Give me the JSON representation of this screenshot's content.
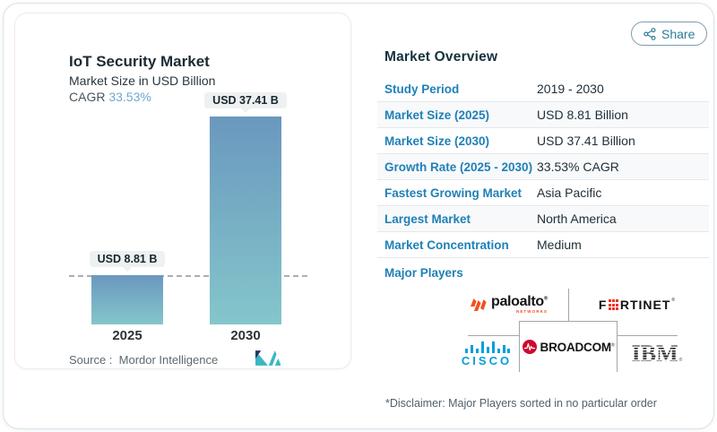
{
  "share": {
    "label": "Share"
  },
  "chart": {
    "title": "IoT Security Market",
    "subtitle": "Market Size in USD Billion",
    "cagr_label": "CAGR",
    "cagr_value": "33.53%",
    "source": "Source :  Mordor Intelligence",
    "bars": [
      {
        "year": "2025",
        "label": "USD 8.81 B"
      },
      {
        "year": "2030",
        "label": "USD 37.41 B"
      }
    ]
  },
  "chart_data": {
    "type": "bar",
    "categories": [
      "2025",
      "2030"
    ],
    "values": [
      8.81,
      37.41
    ],
    "title": "IoT Security Market",
    "subtitle": "Market Size in USD Billion",
    "cagr": "33.53%",
    "bar_labels": [
      "USD 8.81 B",
      "USD 37.41 B"
    ],
    "reference_line_value": 8.81,
    "ylim": [
      0,
      40
    ],
    "grid": false,
    "bar_gradient": [
      "#6a98be",
      "#84c6cb"
    ]
  },
  "overview": {
    "heading": "Market Overview",
    "rows": [
      {
        "label": "Study Period",
        "value": "2019 - 2030"
      },
      {
        "label": "Market Size (2025)",
        "value": "USD 8.81 Billion"
      },
      {
        "label": "Market Size (2030)",
        "value": "USD 37.41 Billion"
      },
      {
        "label": "Growth Rate (2025 - 2030)",
        "value": "33.53% CAGR"
      },
      {
        "label": "Fastest Growing Market",
        "value": "Asia Pacific"
      },
      {
        "label": "Largest Market",
        "value": "North America"
      },
      {
        "label": "Market Concentration",
        "value": "Medium"
      }
    ],
    "players_label": "Major Players",
    "players": {
      "paloalto": {
        "text": "paloalto",
        "sub": "networks"
      },
      "fortinet": {
        "part1": "F",
        "part2": "RTINET"
      },
      "cisco": {
        "text": "CISCO"
      },
      "broadcom": {
        "text": "BROADCOM"
      },
      "ibm": {
        "text": "IBM"
      }
    },
    "disclaimer": "*Disclaimer: Major Players sorted in no particular order"
  },
  "colors": {
    "accent_blue": "#1f80b8",
    "cagr_blue": "#6ea7cf",
    "bar_top": "#6a98be",
    "bar_bottom": "#84c6cb",
    "brand_teal": "#3cb6c3"
  }
}
